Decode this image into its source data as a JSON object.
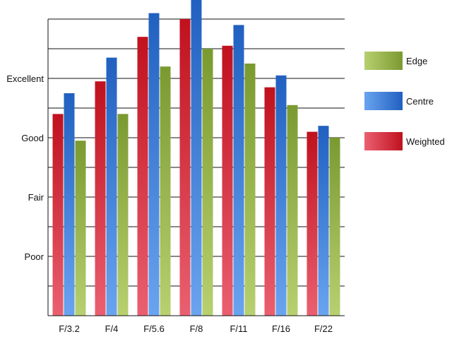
{
  "chart_data": {
    "type": "bar",
    "title": "",
    "xlabel": "",
    "ylabel": "",
    "categories": [
      "F/3.2",
      "F/4",
      "F/5.6",
      "F/8",
      "F/11",
      "F/16",
      "F/22"
    ],
    "y_tick_labels": [
      {
        "value": 2,
        "label": "Poor"
      },
      {
        "value": 4,
        "label": "Fair"
      },
      {
        "value": 6,
        "label": "Good"
      },
      {
        "value": 8,
        "label": "Excellent"
      }
    ],
    "ylim": [
      0,
      10
    ],
    "grid": true,
    "legend_position": "right",
    "series": [
      {
        "name": "Weighted",
        "color": "#c0111e",
        "values": [
          6.8,
          7.9,
          9.4,
          10.0,
          9.1,
          7.7,
          6.2
        ]
      },
      {
        "name": "Centre",
        "color": "#2060c0",
        "values": [
          7.5,
          8.7,
          10.2,
          10.7,
          9.8,
          8.1,
          6.4
        ]
      },
      {
        "name": "Edge",
        "color": "#7a9a30",
        "values": [
          5.9,
          6.8,
          8.4,
          9.0,
          8.5,
          7.1,
          6.0
        ]
      }
    ],
    "legend_order": [
      "Edge",
      "Centre",
      "Weighted"
    ]
  }
}
